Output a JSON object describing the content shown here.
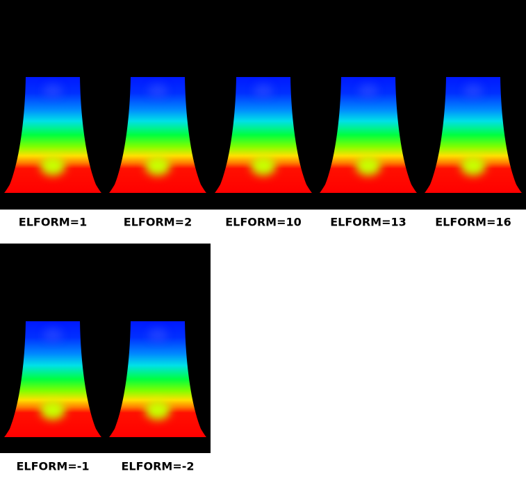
{
  "labels": [
    "ELFORM=1",
    "ELFORM=2",
    "ELFORM=10",
    "ELFORM=13",
    "ELFORM=16",
    "ELFORM=-1",
    "ELFORM=-2"
  ]
}
